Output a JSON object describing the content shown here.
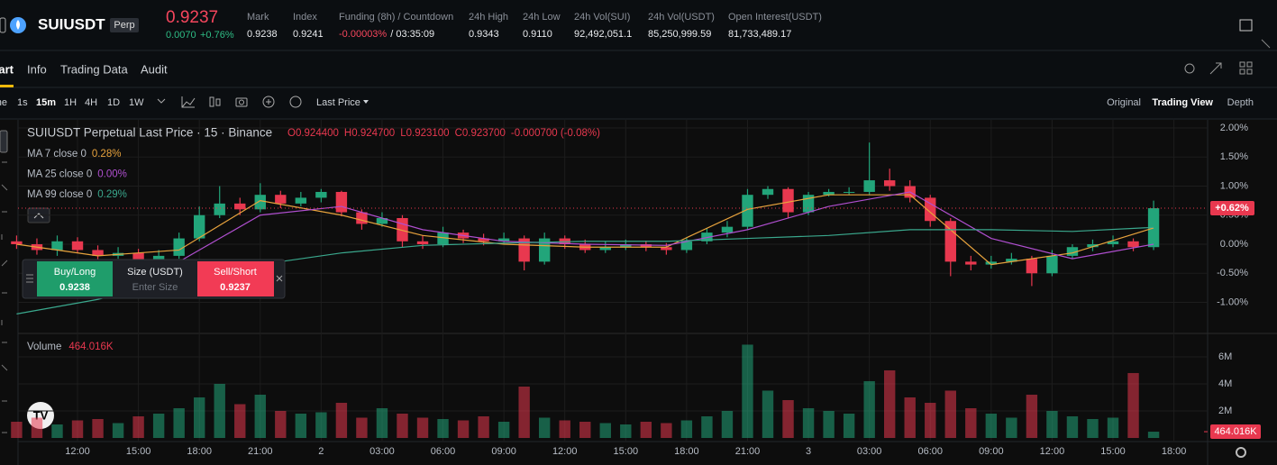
{
  "header": {
    "symbol": "SUIUSDT",
    "badge": "Perp",
    "price": "0.9237",
    "change": "0.0070",
    "change_pct": "+0.76%",
    "stats": [
      {
        "label": "Mark",
        "value": "0.9238"
      },
      {
        "label": "Index",
        "value": "0.9241"
      },
      {
        "label": "Funding (8h) / Countdown",
        "value": "-0.00003%",
        "extra": "/ 03:35:09"
      },
      {
        "label": "24h High",
        "value": "0.9343"
      },
      {
        "label": "24h Low",
        "value": "0.9110"
      },
      {
        "label": "24h Vol(SUI)",
        "value": "92,492,051.1"
      },
      {
        "label": "24h Vol(USDT)",
        "value": "85,250,999.59"
      },
      {
        "label": "Open Interest(USDT)",
        "value": "81,733,489.17"
      }
    ]
  },
  "tabs": [
    "Chart",
    "Info",
    "Trading Data",
    "Audit"
  ],
  "toolbar": {
    "intervals": [
      "Time",
      "1s",
      "15m",
      "1H",
      "4H",
      "1D",
      "1W"
    ],
    "price_type": "Last Price",
    "views": [
      "Original",
      "Trading View",
      "Depth"
    ]
  },
  "order_panel": {
    "buy": "Buy/Long",
    "buy_price": "0.9238",
    "size": "Size (USDT)",
    "size_placeholder": "Enter Size",
    "sell": "Sell/Short",
    "sell_price": "0.9237"
  },
  "chart_data": {
    "type": "candlestick",
    "title": "SUIUSDT Perpetual Last Price · 15 · Binance",
    "ohlc": [
      "O0.924400",
      "H0.924700",
      "L0.923100",
      "C0.923700",
      "-0.000700 (-0.08%)"
    ],
    "colors": {
      "up": "#22a57a",
      "down": "#e8384f"
    },
    "xlim": [
      9.07,
      67.66
    ],
    "xticks": [
      {
        "value": 12,
        "label": "12:00"
      },
      {
        "value": 15,
        "label": "15:00"
      },
      {
        "value": 18,
        "label": "18:00"
      },
      {
        "value": 21,
        "label": "21:00"
      },
      {
        "value": 24,
        "label": "2"
      },
      {
        "value": 27,
        "label": "03:00"
      },
      {
        "value": 30,
        "label": "06:00"
      },
      {
        "value": 33,
        "label": "09:00"
      },
      {
        "value": 36,
        "label": "12:00"
      },
      {
        "value": 39,
        "label": "15:00"
      },
      {
        "value": 42,
        "label": "18:00"
      },
      {
        "value": 45,
        "label": "21:00"
      },
      {
        "value": 48,
        "label": "3"
      },
      {
        "value": 51,
        "label": "03:00"
      },
      {
        "value": 54,
        "label": "06:00"
      },
      {
        "value": 57,
        "label": "09:00"
      },
      {
        "value": 60,
        "label": "12:00"
      },
      {
        "value": 63,
        "label": "15:00"
      },
      {
        "value": 66,
        "label": "18:00"
      }
    ],
    "ylim": [
      -1.535,
      2.14
    ],
    "yticks": [
      {
        "value": 2,
        "label": "2.00%"
      },
      {
        "value": 1.5,
        "label": "1.50%"
      },
      {
        "value": 1,
        "label": "1.00%"
      },
      {
        "value": 0.5,
        "label": "0.50%"
      },
      {
        "value": 0,
        "label": "0.00%"
      },
      {
        "value": -0.5,
        "label": "-0.50%"
      },
      {
        "value": -1,
        "label": "-1.00%"
      }
    ],
    "last_price": {
      "value": 0.62,
      "label": "+0.62%"
    },
    "x": [
      9,
      10,
      11,
      12,
      13,
      14,
      15,
      16,
      17,
      18,
      19,
      20,
      21,
      22,
      23,
      24,
      25,
      26,
      27,
      28,
      29,
      30,
      31,
      32,
      33,
      34,
      35,
      36,
      37,
      38,
      39,
      40,
      41,
      42,
      43,
      44,
      45,
      46,
      47,
      48,
      49,
      50,
      51,
      52,
      53,
      54,
      55,
      56,
      57,
      58,
      59,
      60,
      61,
      62,
      63,
      64,
      65
    ],
    "open": [
      0.05,
      0.0,
      -0.1,
      0.05,
      -0.1,
      -0.2,
      -0.15,
      -0.3,
      -0.2,
      0.1,
      0.5,
      0.7,
      0.6,
      0.85,
      0.7,
      0.8,
      0.9,
      0.55,
      0.35,
      0.45,
      0.05,
      0.0,
      0.2,
      0.1,
      0.05,
      0.1,
      -0.3,
      0.1,
      0.0,
      -0.1,
      -0.05,
      0.0,
      -0.05,
      -0.1,
      0.05,
      0.2,
      0.3,
      0.85,
      0.95,
      0.55,
      0.85,
      0.9,
      0.9,
      1.1,
      1.0,
      0.8,
      0.4,
      -0.3,
      -0.35,
      -0.3,
      -0.25,
      -0.5,
      -0.2,
      -0.05,
      0.0,
      0.05,
      -0.05
    ],
    "high": [
      0.15,
      0.1,
      0.15,
      0.12,
      -0.02,
      -0.05,
      -0.08,
      -0.1,
      0.2,
      0.65,
      1.0,
      0.8,
      1.05,
      0.92,
      0.9,
      0.95,
      0.92,
      0.6,
      0.55,
      0.5,
      0.15,
      0.3,
      0.25,
      0.18,
      0.2,
      0.15,
      0.2,
      0.15,
      0.08,
      0.05,
      0.08,
      0.06,
      0.02,
      0.12,
      0.28,
      0.4,
      0.95,
      1.0,
      0.98,
      0.9,
      0.95,
      0.98,
      1.75,
      1.3,
      1.1,
      0.85,
      0.45,
      -0.2,
      -0.2,
      -0.15,
      -0.2,
      -0.1,
      0.0,
      0.08,
      0.15,
      0.1,
      0.75
    ],
    "low": [
      -0.08,
      -0.18,
      -0.2,
      -0.15,
      -0.28,
      -0.25,
      -0.38,
      -0.35,
      -0.25,
      0.05,
      0.45,
      0.5,
      0.55,
      0.62,
      0.65,
      0.72,
      0.48,
      0.25,
      0.3,
      -0.05,
      -0.08,
      -0.05,
      0.02,
      -0.02,
      0.0,
      -0.45,
      -0.35,
      -0.08,
      -0.15,
      -0.15,
      -0.1,
      -0.12,
      -0.18,
      -0.15,
      0.0,
      0.12,
      0.25,
      0.78,
      0.45,
      0.5,
      0.82,
      0.85,
      0.85,
      0.92,
      0.72,
      0.3,
      -0.55,
      -0.45,
      -0.42,
      -0.35,
      -0.72,
      -0.55,
      -0.25,
      -0.12,
      -0.05,
      -0.12,
      -0.1
    ],
    "close": [
      0.0,
      -0.1,
      0.05,
      -0.1,
      -0.2,
      -0.15,
      -0.3,
      -0.2,
      0.1,
      0.5,
      0.7,
      0.6,
      0.85,
      0.7,
      0.8,
      0.9,
      0.55,
      0.35,
      0.45,
      0.05,
      0.0,
      0.2,
      0.1,
      0.05,
      0.1,
      -0.3,
      0.1,
      0.0,
      -0.1,
      -0.05,
      0.0,
      -0.05,
      -0.1,
      0.05,
      0.2,
      0.3,
      0.85,
      0.95,
      0.55,
      0.85,
      0.9,
      0.9,
      1.1,
      1.0,
      0.8,
      0.4,
      -0.3,
      -0.35,
      -0.3,
      -0.25,
      -0.5,
      -0.2,
      -0.05,
      0.0,
      0.05,
      -0.05,
      0.62
    ],
    "ma_x": [
      9,
      13,
      17,
      21,
      25,
      29,
      33,
      37,
      41,
      45,
      49,
      53,
      57,
      61,
      65
    ],
    "ma": [
      {
        "name": "MA 7 close 0",
        "value_label": "0.28%",
        "color": "#e8a33d",
        "values": [
          0.0,
          -0.2,
          -0.1,
          0.75,
          0.5,
          0.15,
          0.0,
          -0.05,
          -0.05,
          0.6,
          0.85,
          0.85,
          -0.35,
          -0.15,
          0.28
        ]
      },
      {
        "name": "MA 25 close 0",
        "value_label": "0.00%",
        "color": "#b04fd0",
        "values": [
          null,
          null,
          -0.3,
          0.5,
          0.65,
          0.25,
          0.05,
          0.0,
          -0.02,
          0.25,
          0.65,
          0.9,
          0.1,
          -0.25,
          0.0
        ]
      },
      {
        "name": "MA 99 close 0",
        "value_label": "0.29%",
        "color": "#3aa88d",
        "values": [
          -1.2,
          -0.95,
          -0.6,
          -0.35,
          -0.15,
          -0.02,
          0.02,
          0.05,
          0.05,
          0.1,
          0.15,
          0.25,
          0.25,
          0.22,
          0.29
        ]
      }
    ],
    "volume": {
      "name": "Volume",
      "last": {
        "value": 0.464016,
        "label": "464.016K"
      },
      "ylim": [
        0,
        7.73
      ],
      "yticks": [
        {
          "value": 2,
          "label": "2M"
        },
        {
          "value": 4,
          "label": "4M"
        },
        {
          "value": 6,
          "label": "6M"
        }
      ],
      "values": [
        1.2,
        1.5,
        1.0,
        1.3,
        1.4,
        1.1,
        1.6,
        1.8,
        2.2,
        3.0,
        4.0,
        2.5,
        3.2,
        2.0,
        1.8,
        1.9,
        2.6,
        1.5,
        2.2,
        1.8,
        1.5,
        1.4,
        1.3,
        1.6,
        1.2,
        3.8,
        1.5,
        1.3,
        1.2,
        1.1,
        1.0,
        1.2,
        1.1,
        1.3,
        1.6,
        2.0,
        6.9,
        3.5,
        2.8,
        2.2,
        2.0,
        1.8,
        4.2,
        5.0,
        3.0,
        2.6,
        3.5,
        2.2,
        1.8,
        1.5,
        3.2,
        2.0,
        1.6,
        1.4,
        1.5,
        4.8,
        0.464016
      ]
    }
  }
}
